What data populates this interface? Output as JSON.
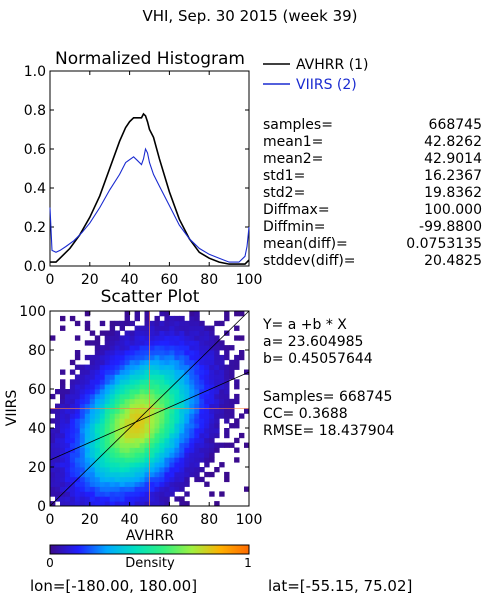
{
  "header": {
    "title": "VHI,  Sep. 30 2015 (week 39)"
  },
  "footer": {
    "lon_label": "lon=[-180.00, 180.00]",
    "lat_label": "lat=[-55.15, 75.02]"
  },
  "colorbar": {
    "label": "Density",
    "min_label": "0",
    "max_label": "1",
    "stops": [
      "#3b0a8a",
      "#2020ff",
      "#00a8ff",
      "#00e0c0",
      "#30f080",
      "#a0f040",
      "#ffb000",
      "#ff6a00"
    ]
  },
  "stats": {
    "rows": [
      {
        "label": "samples=",
        "value": "668745"
      },
      {
        "label": "mean1=",
        "value": "42.8262"
      },
      {
        "label": "mean2=",
        "value": "42.9014"
      },
      {
        "label": "std1=",
        "value": "16.2367"
      },
      {
        "label": "std2=",
        "value": "19.8362"
      },
      {
        "label": "Diffmax=",
        "value": "100.000"
      },
      {
        "label": "Diffmin=",
        "value": "-99.8800"
      },
      {
        "label": "mean(diff)=",
        "value": "0.0753135"
      },
      {
        "label": "stddev(diff)=",
        "value": "20.4825"
      }
    ]
  },
  "regression": {
    "equation": "Y= a +b * X",
    "a_label": "a= 23.604985",
    "b_label": "b= 0.45057644",
    "samples_label": "Samples= 668745",
    "cc_label": "CC=  0.3688",
    "rmse_label": "RMSE= 18.437904"
  },
  "chart_data": [
    {
      "type": "line",
      "title": "Normalized Histogram",
      "xlim": [
        0,
        100
      ],
      "ylim": [
        0,
        1.0
      ],
      "x_ticks": [
        "0",
        "20",
        "40",
        "60",
        "80",
        "100"
      ],
      "y_ticks": [
        "0.0",
        "0.2",
        "0.4",
        "0.6",
        "0.8",
        "1.0"
      ],
      "legend_position": "top-right",
      "colors": {
        "AVHRR (1)": "#000000",
        "VIIRS (2)": "#1a2bd0"
      },
      "series": [
        {
          "name": "AVHRR (1)",
          "x": [
            0,
            1,
            3,
            5,
            10,
            15,
            20,
            25,
            30,
            35,
            38,
            40,
            42,
            44,
            46,
            47,
            48,
            49,
            50,
            52,
            55,
            60,
            65,
            70,
            75,
            80,
            85,
            90,
            95,
            98,
            100
          ],
          "y": [
            0.02,
            0.02,
            0.02,
            0.04,
            0.09,
            0.16,
            0.25,
            0.36,
            0.5,
            0.64,
            0.71,
            0.74,
            0.76,
            0.76,
            0.76,
            0.78,
            0.77,
            0.74,
            0.7,
            0.66,
            0.55,
            0.38,
            0.24,
            0.14,
            0.07,
            0.04,
            0.02,
            0.01,
            0.01,
            0.01,
            0.03
          ]
        },
        {
          "name": "VIIRS (2)",
          "x": [
            0,
            1,
            3,
            5,
            8,
            12,
            16,
            20,
            25,
            30,
            35,
            38,
            42,
            44,
            46,
            47,
            48,
            49,
            50,
            52,
            55,
            60,
            65,
            70,
            75,
            80,
            85,
            90,
            95,
            98,
            99,
            100
          ],
          "y": [
            0.3,
            0.08,
            0.07,
            0.08,
            0.1,
            0.13,
            0.17,
            0.22,
            0.3,
            0.39,
            0.47,
            0.53,
            0.56,
            0.54,
            0.52,
            0.55,
            0.6,
            0.58,
            0.53,
            0.47,
            0.41,
            0.31,
            0.21,
            0.14,
            0.09,
            0.06,
            0.04,
            0.02,
            0.02,
            0.05,
            0.1,
            0.2
          ]
        }
      ]
    },
    {
      "type": "heatmap",
      "title": "Scatter Plot",
      "xlabel": "AVHRR",
      "ylabel": "VIIRS",
      "xlim": [
        0,
        100
      ],
      "ylim": [
        0,
        100
      ],
      "x_ticks": [
        "0",
        "20",
        "40",
        "60",
        "80",
        "100"
      ],
      "y_ticks": [
        "0",
        "20",
        "40",
        "60",
        "80",
        "100"
      ],
      "density_center": [
        44,
        43
      ],
      "density_spread": [
        17,
        20
      ],
      "regression_line": {
        "a": 23.604985,
        "b": 0.45057644
      },
      "one_to_one_line": true,
      "crosshair": {
        "x": 50,
        "y": 50
      }
    }
  ]
}
